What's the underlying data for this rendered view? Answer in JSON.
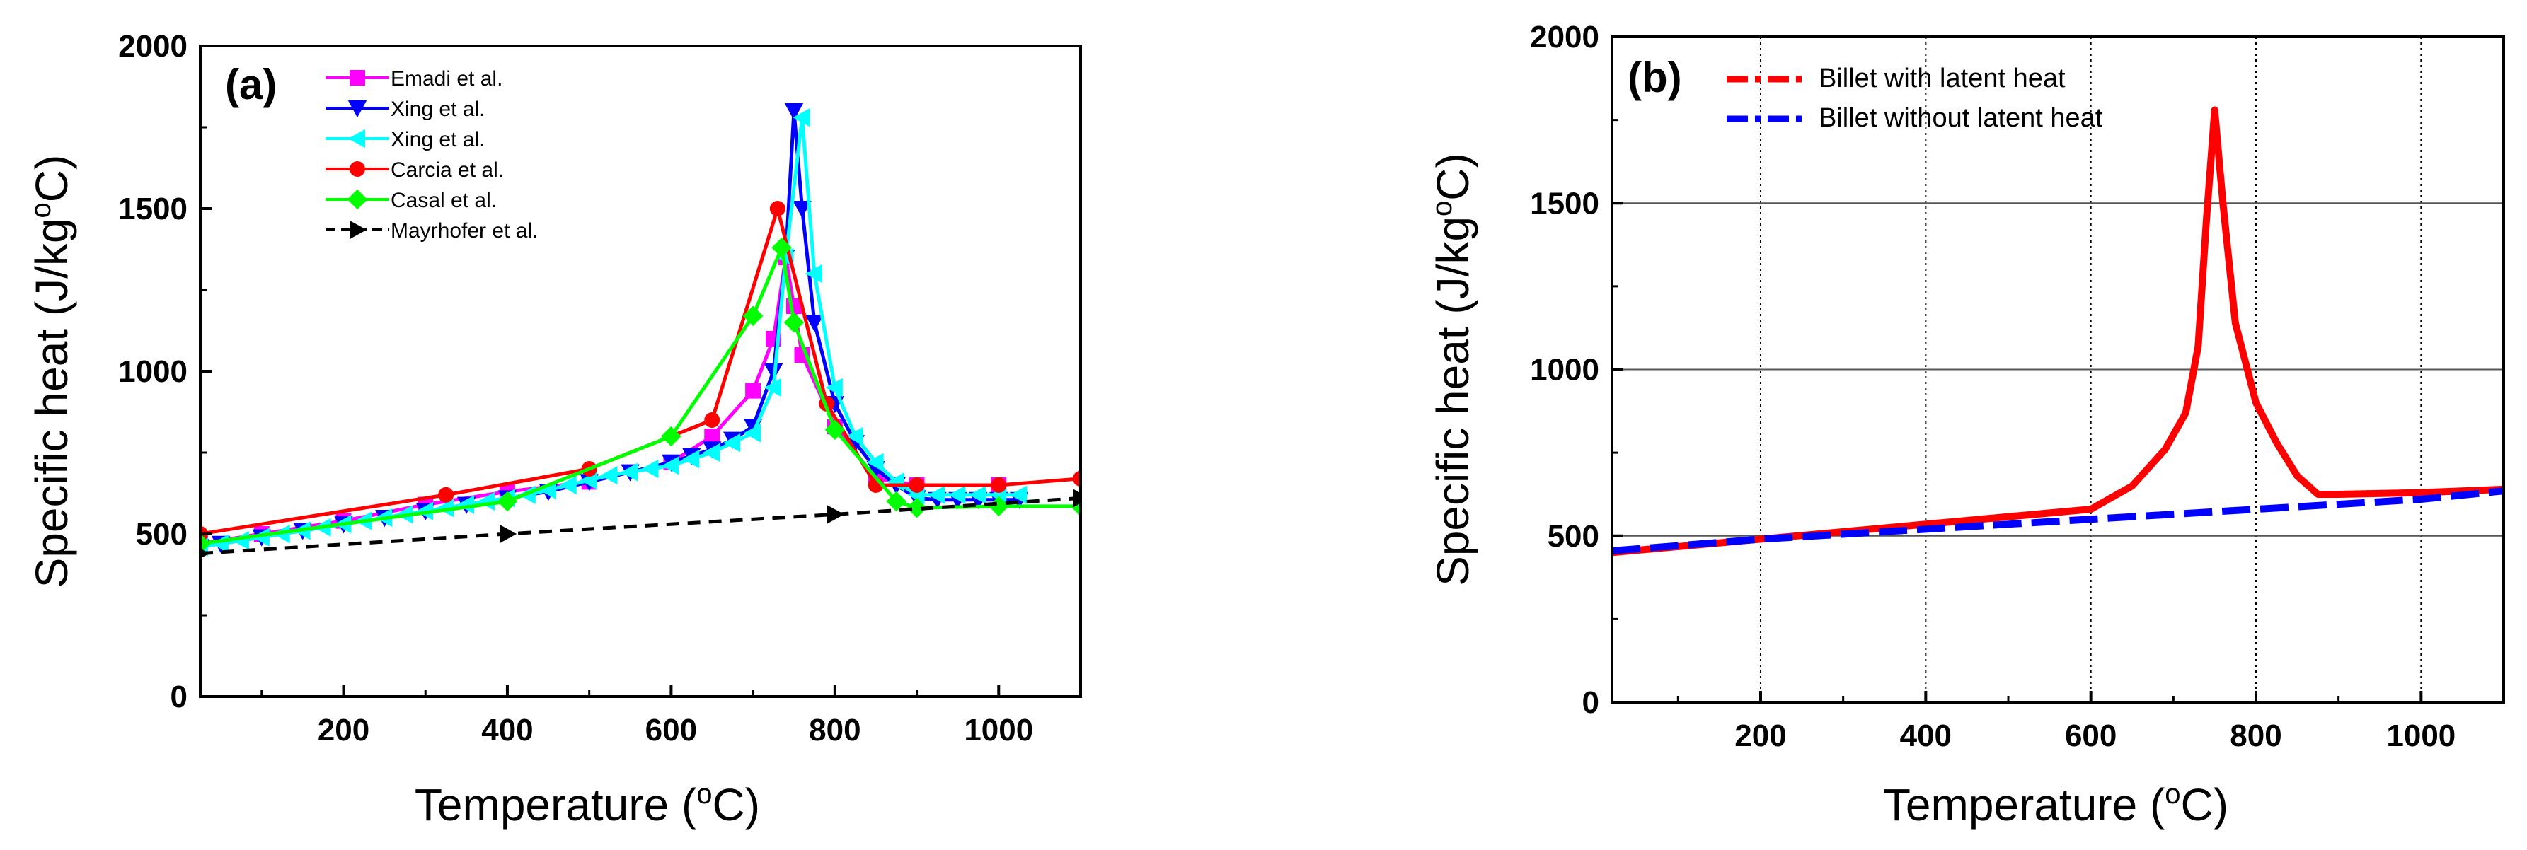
{
  "chart_data": [
    {
      "type": "line",
      "panel_label": "(a)",
      "xlabel": "Temperature (",
      "xlabel_sup": "o",
      "xlabel_tail": "C)",
      "ylabel": "Specific heat (J/kg",
      "ylabel_sup": "o",
      "ylabel_tail": "C)",
      "xlim": [
        25,
        1100
      ],
      "ylim": [
        0,
        2000
      ],
      "xticks": [
        200,
        400,
        600,
        800,
        1000
      ],
      "yticks": [
        0,
        500,
        1000,
        1500,
        2000
      ],
      "grid": false,
      "legend_position": "top-left",
      "series": [
        {
          "name": "Emadi et al.",
          "color": "#ff00ff",
          "marker": "square",
          "x": [
            25,
            100,
            200,
            300,
            400,
            500,
            600,
            650,
            700,
            725,
            740,
            750,
            760,
            800,
            850,
            900,
            1000
          ],
          "y": [
            470,
            500,
            540,
            590,
            630,
            660,
            720,
            800,
            940,
            1100,
            1350,
            1200,
            1050,
            830,
            670,
            650,
            650
          ]
        },
        {
          "name": "Xing et al.",
          "color": "#0000ff",
          "marker": "triangle-down",
          "x": [
            25,
            50,
            100,
            150,
            200,
            250,
            300,
            350,
            400,
            450,
            500,
            550,
            600,
            625,
            650,
            675,
            700,
            725,
            740,
            750,
            760,
            775,
            800,
            825,
            850,
            875,
            900,
            925,
            950,
            975,
            1000,
            1025
          ],
          "y": [
            460,
            470,
            490,
            510,
            530,
            550,
            570,
            590,
            610,
            630,
            660,
            690,
            720,
            740,
            760,
            790,
            830,
            1000,
            1350,
            1800,
            1500,
            1150,
            900,
            780,
            700,
            650,
            610,
            605,
            605,
            605,
            605,
            605
          ]
        },
        {
          "name": "Xing et al.",
          "color": "#00ffff",
          "marker": "triangle-left",
          "x": [
            25,
            50,
            75,
            100,
            125,
            150,
            175,
            200,
            225,
            250,
            275,
            300,
            325,
            350,
            375,
            400,
            425,
            450,
            475,
            500,
            525,
            550,
            575,
            600,
            625,
            650,
            675,
            700,
            725,
            740,
            760,
            775,
            800,
            825,
            850,
            875,
            900,
            925,
            950,
            975,
            1000,
            1025
          ],
          "y": [
            460,
            470,
            480,
            490,
            500,
            510,
            520,
            530,
            540,
            550,
            560,
            570,
            580,
            590,
            600,
            610,
            620,
            635,
            650,
            665,
            680,
            690,
            700,
            710,
            730,
            750,
            780,
            810,
            950,
            1350,
            1780,
            1300,
            950,
            800,
            720,
            660,
            620,
            620,
            620,
            620,
            620,
            620
          ]
        },
        {
          "name": "Carcia et al.",
          "color": "#ff0000",
          "marker": "circle",
          "x": [
            25,
            325,
            500,
            650,
            730,
            790,
            850,
            900,
            1000,
            1100
          ],
          "y": [
            500,
            620,
            700,
            850,
            1500,
            900,
            650,
            650,
            650,
            670
          ]
        },
        {
          "name": "Casal et al.",
          "color": "#00ff00",
          "marker": "diamond",
          "x": [
            25,
            400,
            600,
            700,
            735,
            750,
            800,
            875,
            900,
            1000,
            1100
          ],
          "y": [
            470,
            600,
            800,
            1170,
            1380,
            1150,
            820,
            600,
            580,
            585,
            585
          ]
        },
        {
          "name": "Mayrhofer et al.",
          "color": "#000000",
          "marker": "triangle-right",
          "dashed": true,
          "x": [
            25,
            400,
            800,
            1100
          ],
          "y": [
            440,
            500,
            560,
            610
          ]
        }
      ]
    },
    {
      "type": "line",
      "panel_label": "(b)",
      "xlabel": "Temperature (",
      "xlabel_sup": "o",
      "xlabel_tail": "C)",
      "ylabel": "Specific heat (J/kg",
      "ylabel_sup": "o",
      "ylabel_tail": "C)",
      "xlim": [
        20,
        1100
      ],
      "ylim": [
        0,
        2000
      ],
      "xticks": [
        200,
        400,
        600,
        800,
        1000
      ],
      "yticks": [
        0,
        500,
        1000,
        1500,
        2000
      ],
      "grid": true,
      "legend_position": "top-left",
      "series": [
        {
          "name": "Billet with latent heat",
          "color": "#ff0000",
          "dashed": false,
          "x": [
            20,
            200,
            400,
            600,
            650,
            690,
            715,
            730,
            740,
            750,
            760,
            775,
            800,
            825,
            850,
            875,
            900,
            1000,
            1100
          ],
          "y": [
            450,
            490,
            535,
            580,
            650,
            760,
            870,
            1070,
            1450,
            1780,
            1500,
            1140,
            900,
            780,
            680,
            625,
            625,
            630,
            640
          ]
        },
        {
          "name": "Billet without latent heat",
          "color": "#0000ff",
          "dashed": true,
          "x": [
            20,
            200,
            400,
            600,
            800,
            1000,
            1100
          ],
          "y": [
            455,
            490,
            520,
            550,
            580,
            610,
            635
          ]
        }
      ]
    }
  ]
}
